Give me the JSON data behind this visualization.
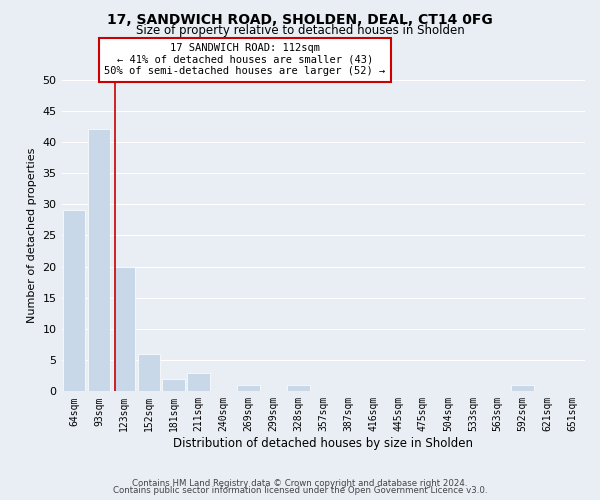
{
  "title": "17, SANDWICH ROAD, SHOLDEN, DEAL, CT14 0FG",
  "subtitle": "Size of property relative to detached houses in Sholden",
  "xlabel": "Distribution of detached houses by size in Sholden",
  "ylabel": "Number of detached properties",
  "bin_labels": [
    "64sqm",
    "93sqm",
    "123sqm",
    "152sqm",
    "181sqm",
    "211sqm",
    "240sqm",
    "269sqm",
    "299sqm",
    "328sqm",
    "357sqm",
    "387sqm",
    "416sqm",
    "445sqm",
    "475sqm",
    "504sqm",
    "533sqm",
    "563sqm",
    "592sqm",
    "621sqm",
    "651sqm"
  ],
  "bar_heights": [
    29,
    42,
    20,
    6,
    2,
    3,
    0,
    1,
    0,
    1,
    0,
    0,
    0,
    0,
    0,
    0,
    0,
    0,
    1,
    0,
    0
  ],
  "bar_color": "#c8d8e8",
  "red_line_color": "#cc0000",
  "ylim": [
    0,
    50
  ],
  "yticks": [
    0,
    5,
    10,
    15,
    20,
    25,
    30,
    35,
    40,
    45,
    50
  ],
  "annotation_line1": "17 SANDWICH ROAD: 112sqm",
  "annotation_line2": "← 41% of detached houses are smaller (43)",
  "annotation_line3": "50% of semi-detached houses are larger (52) →",
  "annotation_box_color": "#ffffff",
  "annotation_box_edge_color": "#cc0000",
  "footer_line1": "Contains HM Land Registry data © Crown copyright and database right 2024.",
  "footer_line2": "Contains public sector information licensed under the Open Government Licence v3.0.",
  "background_color": "#e8eef4",
  "grid_color": "#ffffff"
}
